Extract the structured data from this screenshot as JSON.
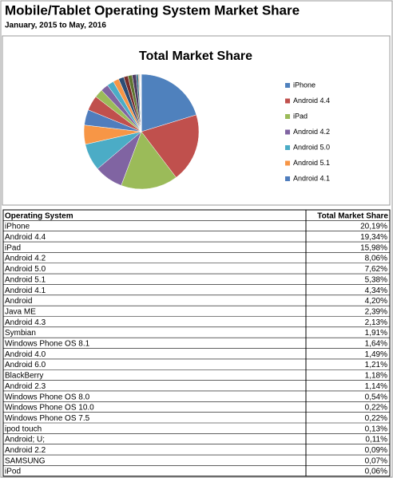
{
  "header": {
    "title": "Mobile/Tablet Operating System Market Share",
    "subtitle": "January, 2015 to May, 2016"
  },
  "chart_data": {
    "type": "pie",
    "title": "Total Market Share",
    "categories": [
      "iPhone",
      "Android 4.4",
      "iPad",
      "Android 4.2",
      "Android 5.0",
      "Android 5.1",
      "Android 4.1",
      "Android",
      "Java ME",
      "Android 4.3",
      "Symbian",
      "Windows Phone OS 8.1",
      "Android 4.0",
      "Android 6.0",
      "BlackBerry",
      "Android 2.3",
      "Windows Phone OS 8.0",
      "Windows Phone OS 10.0",
      "Windows Phone OS 7.5",
      "ipod touch",
      "Android; U;",
      "Android 2.2",
      "SAMSUNG",
      "iPod"
    ],
    "values": [
      20.19,
      19.34,
      15.98,
      8.06,
      7.62,
      5.38,
      4.34,
      4.2,
      2.39,
      2.13,
      1.91,
      1.64,
      1.49,
      1.21,
      1.18,
      1.14,
      0.54,
      0.22,
      0.22,
      0.13,
      0.11,
      0.09,
      0.07,
      0.06
    ],
    "value_labels": [
      "20,19%",
      "19,34%",
      "15,98%",
      "8,06%",
      "7,62%",
      "5,38%",
      "4,34%",
      "4,20%",
      "2,39%",
      "2,13%",
      "1,91%",
      "1,64%",
      "1,49%",
      "1,21%",
      "1,18%",
      "1,14%",
      "0,54%",
      "0,22%",
      "0,22%",
      "0,13%",
      "0,11%",
      "0,09%",
      "0,07%",
      "0,06%"
    ],
    "colors": [
      "#4f81bd",
      "#c0504d",
      "#9bbb59",
      "#8064a2",
      "#4bacc6",
      "#f79646",
      "#4f7dbd",
      "#c0504d",
      "#9bbb59",
      "#8064a2",
      "#4bacc6",
      "#f79646",
      "#2c4d75",
      "#772c2a",
      "#5f7530",
      "#4d3b62",
      "#276a7c",
      "#b65708",
      "#729aca",
      "#cd7371",
      "#afc97a",
      "#9983b5",
      "#6fbdd1",
      "#f9ab6b"
    ]
  },
  "table": {
    "columns": [
      "Operating System",
      "Total Market Share"
    ]
  }
}
